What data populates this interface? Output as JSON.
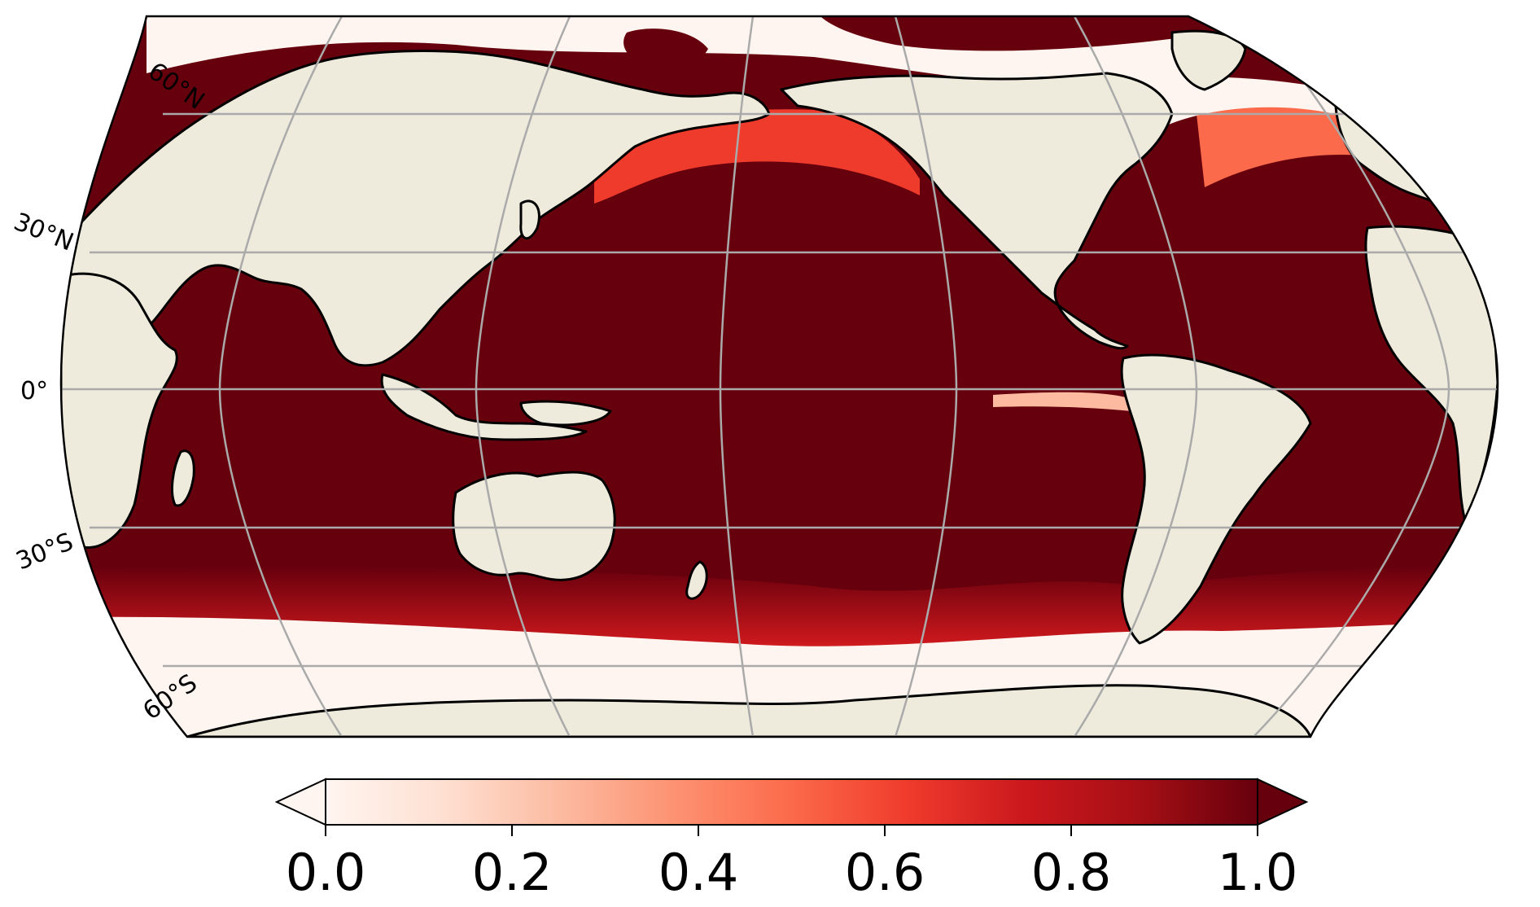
{
  "map": {
    "projection": "Robinson",
    "central_longitude": "180°",
    "latitude_labels": [
      "60°N",
      "30°N",
      "0°",
      "30°S",
      "60°S"
    ],
    "gridlines": true,
    "gridline_color": "#aaaaaa",
    "land_color": "#efebdc",
    "coastline_color": "#000000"
  },
  "colorbar": {
    "colormap": "Reds",
    "orientation": "horizontal",
    "extend": "both",
    "range": [
      0.0,
      1.0
    ],
    "ticks": [
      "0.0",
      "0.2",
      "0.4",
      "0.6",
      "0.8",
      "1.0"
    ],
    "stops": [
      "#fff5f0",
      "#fee0d2",
      "#fcbba1",
      "#fc9272",
      "#fb6a4a",
      "#ef3b2c",
      "#cb181d",
      "#a50f15",
      "#67000d"
    ]
  },
  "colors": {
    "high": "#67000d",
    "mid": "#ef3b2c",
    "low": "#fff5f0"
  }
}
